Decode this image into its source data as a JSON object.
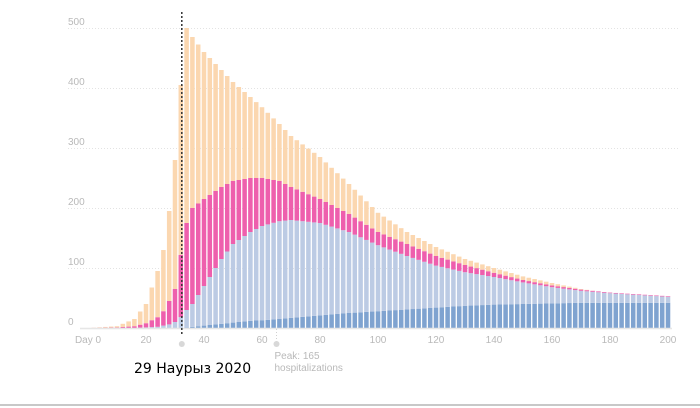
{
  "chart_data": {
    "type": "bar",
    "stacked": true,
    "title": "",
    "xlabel": "",
    "ylabel": "",
    "xlim": [
      0,
      200
    ],
    "ylim": [
      0,
      500
    ],
    "x_ticks": [
      "Day 0",
      "20",
      "40",
      "60",
      "80",
      "100",
      "120",
      "140",
      "160",
      "180",
      "200"
    ],
    "x_tick_values": [
      0,
      20,
      40,
      60,
      80,
      100,
      120,
      140,
      160,
      180,
      200
    ],
    "y_ticks": [
      "0",
      "100",
      "200",
      "300",
      "400",
      "500"
    ],
    "y_tick_values": [
      0,
      100,
      200,
      300,
      400,
      500
    ],
    "grid": true,
    "bar_interval_days": 2,
    "keyframe_days": [
      0,
      10,
      16,
      20,
      24,
      26,
      28,
      30,
      32,
      34,
      36,
      40,
      46,
      50,
      56,
      60,
      66,
      70,
      80,
      90,
      100,
      110,
      120,
      130,
      140,
      150,
      160,
      170,
      180,
      190,
      200
    ],
    "series_cumulative": [
      {
        "name": "dark-blue",
        "color": "#7fa3d0",
        "values": [
          0,
          0,
          0,
          0,
          0,
          0,
          0,
          0,
          0,
          1,
          2,
          4,
          7,
          9,
          12,
          13,
          15,
          17,
          21,
          25,
          28,
          31,
          34,
          37,
          39,
          40,
          41,
          42,
          42,
          42,
          42
        ]
      },
      {
        "name": "light-blue",
        "color": "#bccbe4",
        "values": [
          0,
          0,
          0,
          1,
          2,
          4,
          6,
          10,
          18,
          30,
          40,
          70,
          115,
          140,
          160,
          170,
          178,
          180,
          175,
          160,
          138,
          120,
          104,
          93,
          85,
          76,
          68,
          62,
          58,
          55,
          52
        ]
      },
      {
        "name": "pink",
        "color": "#ee5fad",
        "values": [
          0,
          1,
          3,
          8,
          18,
          28,
          45,
          65,
          122,
          175,
          200,
          215,
          235,
          245,
          250,
          250,
          245,
          235,
          215,
          190,
          160,
          140,
          120,
          105,
          92,
          80,
          71,
          64,
          59,
          56,
          53
        ]
      },
      {
        "name": "peach",
        "color": "#fbd7b0",
        "values": [
          0,
          3,
          15,
          40,
          95,
          130,
          195,
          280,
          405,
          500,
          485,
          460,
          430,
          410,
          385,
          368,
          340,
          320,
          285,
          240,
          192,
          160,
          135,
          115,
          100,
          86,
          75,
          65,
          58,
          55,
          52
        ]
      }
    ],
    "annotations": [
      {
        "day": 32,
        "style": "dashed-line",
        "label": "29 Наурыз 2020"
      },
      {
        "day": 65,
        "style": "dotted-marker",
        "label": "Peak: 165 hospitalizations",
        "label_lines": [
          "Peak: 165",
          "hospitalizations"
        ]
      }
    ]
  },
  "date_label": "29 Наурыз 2020"
}
